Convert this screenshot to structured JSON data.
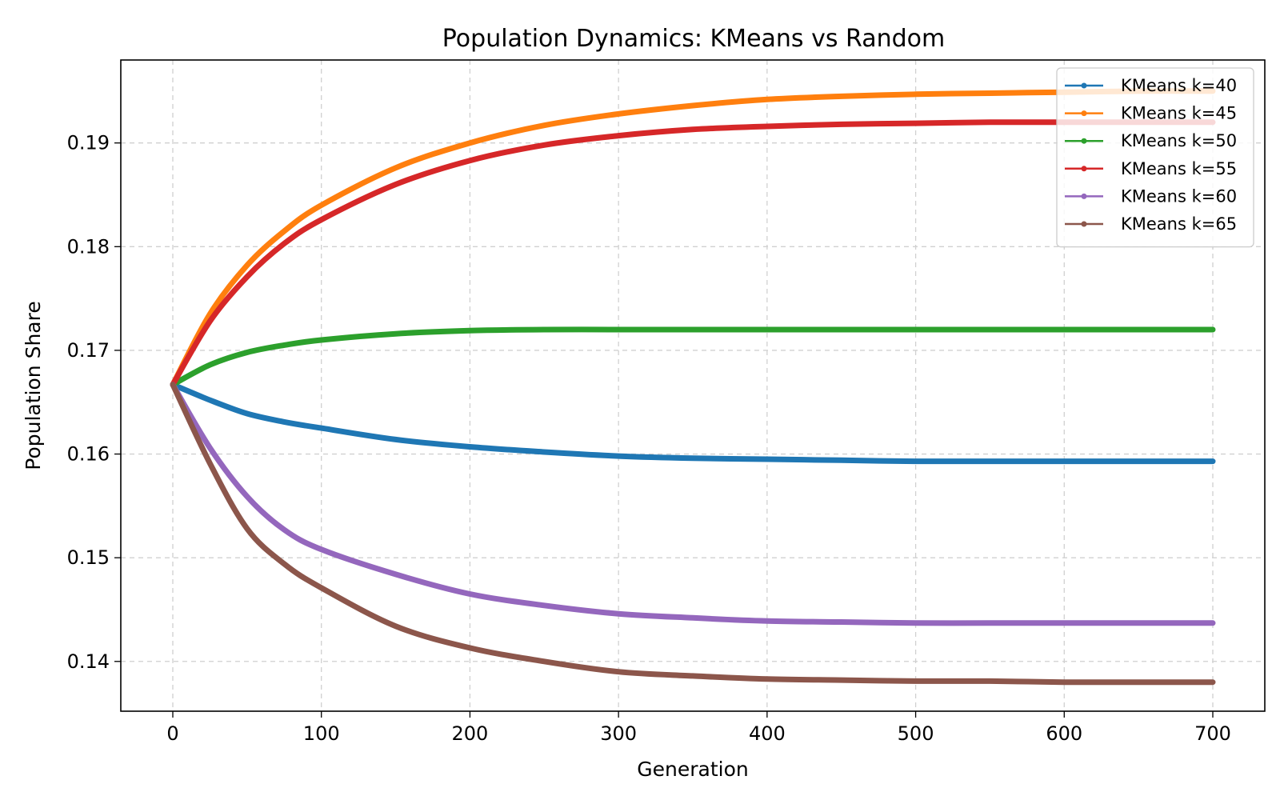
{
  "chart_data": {
    "type": "line",
    "title": "Population Dynamics: KMeans vs Random",
    "xlabel": "Generation",
    "ylabel": "Population Share",
    "xlim": [
      -35,
      735
    ],
    "ylim": [
      0.1352,
      0.198
    ],
    "xticks": [
      0,
      100,
      200,
      300,
      400,
      500,
      600,
      700
    ],
    "xtick_labels": [
      "0",
      "100",
      "200",
      "300",
      "400",
      "500",
      "600",
      "700"
    ],
    "yticks": [
      0.14,
      0.15,
      0.16,
      0.17,
      0.18,
      0.19
    ],
    "ytick_labels": [
      "0.14",
      "0.15",
      "0.16",
      "0.17",
      "0.18",
      "0.19"
    ],
    "grid": true,
    "legend_position": "top-right",
    "x": [
      0,
      25,
      50,
      75,
      100,
      150,
      200,
      250,
      300,
      350,
      400,
      450,
      500,
      550,
      600,
      650,
      700
    ],
    "series": [
      {
        "name": "KMeans k=40",
        "color": "#1f77b4",
        "values": [
          0.1667,
          0.1652,
          0.1639,
          0.1631,
          0.1625,
          0.1614,
          0.1607,
          0.1602,
          0.1598,
          0.1596,
          0.1595,
          0.1594,
          0.1593,
          0.1593,
          0.1593,
          0.1593,
          0.1593
        ]
      },
      {
        "name": "KMeans k=45",
        "color": "#ff7f0e",
        "values": [
          0.1667,
          0.1735,
          0.1782,
          0.1815,
          0.184,
          0.1876,
          0.19,
          0.1917,
          0.1928,
          0.1936,
          0.1942,
          0.1945,
          0.1947,
          0.1948,
          0.1949,
          0.195,
          0.195
        ]
      },
      {
        "name": "KMeans k=50",
        "color": "#2ca02c",
        "values": [
          0.1667,
          0.1686,
          0.1698,
          0.1705,
          0.171,
          0.1716,
          0.1719,
          0.172,
          0.172,
          0.172,
          0.172,
          0.172,
          0.172,
          0.172,
          0.172,
          0.172,
          0.172
        ]
      },
      {
        "name": "KMeans k=55",
        "color": "#d62728",
        "values": [
          0.1667,
          0.1728,
          0.1771,
          0.1803,
          0.1826,
          0.186,
          0.1883,
          0.1898,
          0.1907,
          0.1913,
          0.1916,
          0.1918,
          0.1919,
          0.192,
          0.192,
          0.192,
          0.192
        ]
      },
      {
        "name": "KMeans k=60",
        "color": "#9467bd",
        "values": [
          0.1667,
          0.1606,
          0.1559,
          0.1527,
          0.1508,
          0.1484,
          0.1465,
          0.1454,
          0.1446,
          0.1442,
          0.1439,
          0.1438,
          0.1437,
          0.1437,
          0.1437,
          0.1437,
          0.1437
        ]
      },
      {
        "name": "KMeans k=65",
        "color": "#8c564b",
        "values": [
          0.1667,
          0.1591,
          0.1528,
          0.1494,
          0.1471,
          0.1434,
          0.1413,
          0.14,
          0.139,
          0.1386,
          0.1383,
          0.1382,
          0.1381,
          0.1381,
          0.138,
          0.138,
          0.138
        ]
      }
    ]
  }
}
